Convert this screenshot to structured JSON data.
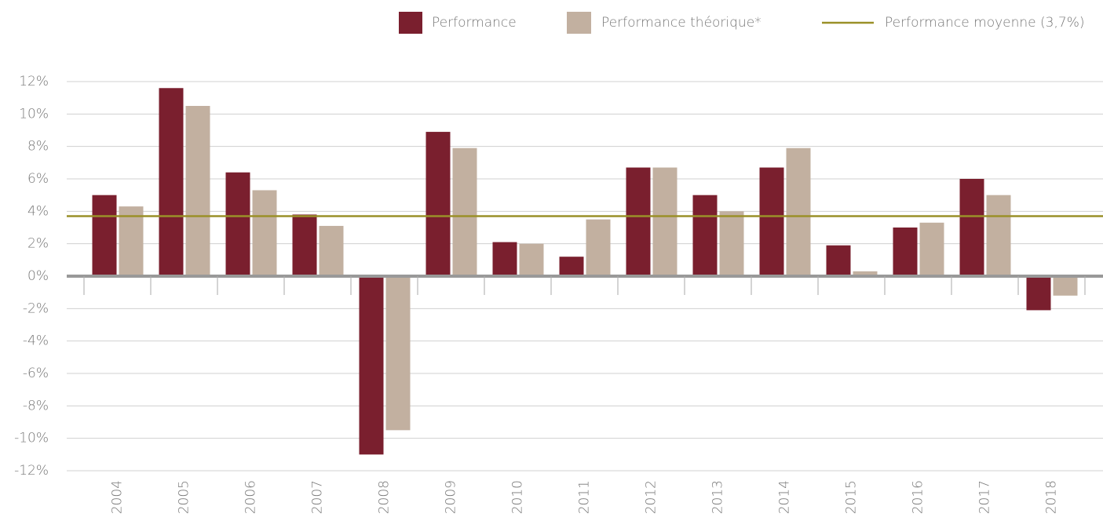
{
  "chart_data": {
    "type": "bar",
    "categories": [
      "2004",
      "2005",
      "2006",
      "2007",
      "2008",
      "2009",
      "2010",
      "2011",
      "2012",
      "2013",
      "2014",
      "2015",
      "2016",
      "2017",
      "2018"
    ],
    "series": [
      {
        "name": "Performance",
        "color": "#7a1f2e",
        "values": [
          5.0,
          11.6,
          6.4,
          3.8,
          -11.0,
          8.9,
          2.1,
          1.2,
          6.7,
          5.0,
          6.7,
          1.9,
          3.0,
          6.0,
          -2.1
        ]
      },
      {
        "name": "Performance théorique*",
        "color": "#c2b0a0",
        "values": [
          4.3,
          10.5,
          5.3,
          3.1,
          -9.5,
          7.9,
          2.0,
          3.5,
          6.7,
          4.0,
          7.9,
          0.3,
          3.3,
          5.0,
          -1.2
        ]
      }
    ],
    "average": {
      "name": "Performance moyenne (3,7%)",
      "value": 3.7,
      "color": "#9a9028"
    },
    "ylim": [
      -12,
      12
    ],
    "yticks": [
      {
        "value": -12,
        "label": "-12%"
      },
      {
        "value": -10,
        "label": "-10%"
      },
      {
        "value": -8,
        "label": "-8%"
      },
      {
        "value": -6,
        "label": "-6%"
      },
      {
        "value": -4,
        "label": "-4%"
      },
      {
        "value": -2,
        "label": "-2%"
      },
      {
        "value": 0,
        "label": "0%"
      },
      {
        "value": 2,
        "label": "2%"
      },
      {
        "value": 4,
        "label": "4%"
      },
      {
        "value": 6,
        "label": "6%"
      },
      {
        "value": 8,
        "label": "8%"
      },
      {
        "value": 10,
        "label": "10%"
      },
      {
        "value": 12,
        "label": "12%"
      }
    ],
    "grid": true,
    "legend": "top"
  }
}
